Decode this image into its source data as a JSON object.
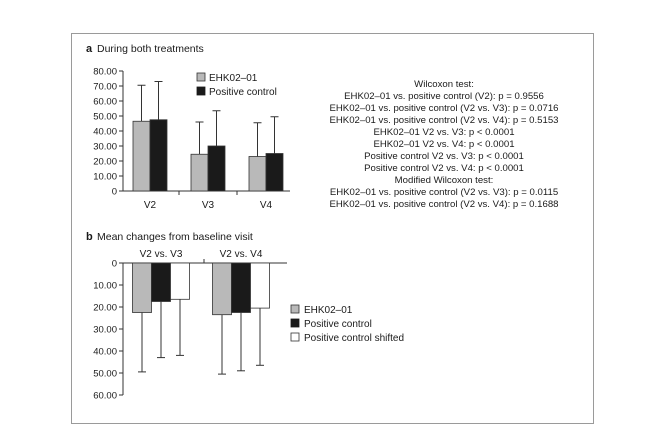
{
  "colors": {
    "gray_bar": "#b9b9b9",
    "black_bar": "#1a1a1a",
    "white_bar": "#ffffff",
    "axis": "#333333",
    "frame": "#9a9a9a"
  },
  "chart_data": [
    {
      "type": "bar",
      "panel_letter": "a",
      "title": "During both treatments",
      "categories": [
        "V2",
        "V3",
        "V4"
      ],
      "ylim": [
        0,
        80
      ],
      "yticks": [
        "0",
        "10.00",
        "20.00",
        "30.00",
        "40.00",
        "50.00",
        "60.00",
        "70.00",
        "80.00"
      ],
      "ytick_values": [
        0,
        10,
        20,
        30,
        40,
        50,
        60,
        70,
        80
      ],
      "legend_placement": "top-right",
      "series": [
        {
          "name": "EHK02–01",
          "color": "#b9b9b9",
          "values": [
            46.5,
            24.5,
            23
          ],
          "error_upper": [
            70.5,
            46,
            45.5
          ]
        },
        {
          "name": "Positive control",
          "color": "#1a1a1a",
          "values": [
            47.5,
            30,
            25
          ],
          "error_upper": [
            73,
            53.5,
            49.5
          ]
        }
      ],
      "annotations": [
        "Wilcoxon test:",
        "EHK02–01 vs. positive control (V2): p = 0.9556",
        "EHK02–01 vs. positive control (V2 vs. V3): p = 0.0716",
        "EHK02–01 vs. positive control (V2 vs. V4): p = 0.5153",
        "EHK02–01 V2 vs. V3: p < 0.0001",
        "EHK02–01 V2 vs. V4: p < 0.0001",
        "Positive control V2 vs. V3: p < 0.0001",
        "Positive control V2 vs. V4: p < 0.0001",
        "Modified Wilcoxon test:",
        "EHK02–01 vs. positive control (V2 vs. V3): p = 0.0115",
        "EHK02–01 vs. positive control (V2 vs. V4): p = 0.1688"
      ]
    },
    {
      "type": "bar",
      "panel_letter": "b",
      "title": "Mean changes from baseline visit",
      "categories": [
        "V2 vs. V3",
        "V2 vs. V4"
      ],
      "ylim": [
        0,
        60
      ],
      "axis_inverted": true,
      "yticks": [
        "0",
        "10.00",
        "20.00",
        "30.00",
        "40.00",
        "50.00",
        "60.00"
      ],
      "ytick_values": [
        0,
        10,
        20,
        30,
        40,
        50,
        60
      ],
      "legend_placement": "right",
      "series": [
        {
          "name": "EHK02–01",
          "color": "#b9b9b9",
          "values": [
            22.5,
            23.5
          ],
          "error_upper": [
            49.5,
            50.5
          ]
        },
        {
          "name": "Positive control",
          "color": "#1a1a1a",
          "values": [
            17.5,
            22.5
          ],
          "error_upper": [
            43,
            49
          ]
        },
        {
          "name": "Positive control shifted",
          "color": "#ffffff",
          "values": [
            16.5,
            20.5
          ],
          "error_upper": [
            42,
            46.5
          ]
        }
      ]
    }
  ]
}
